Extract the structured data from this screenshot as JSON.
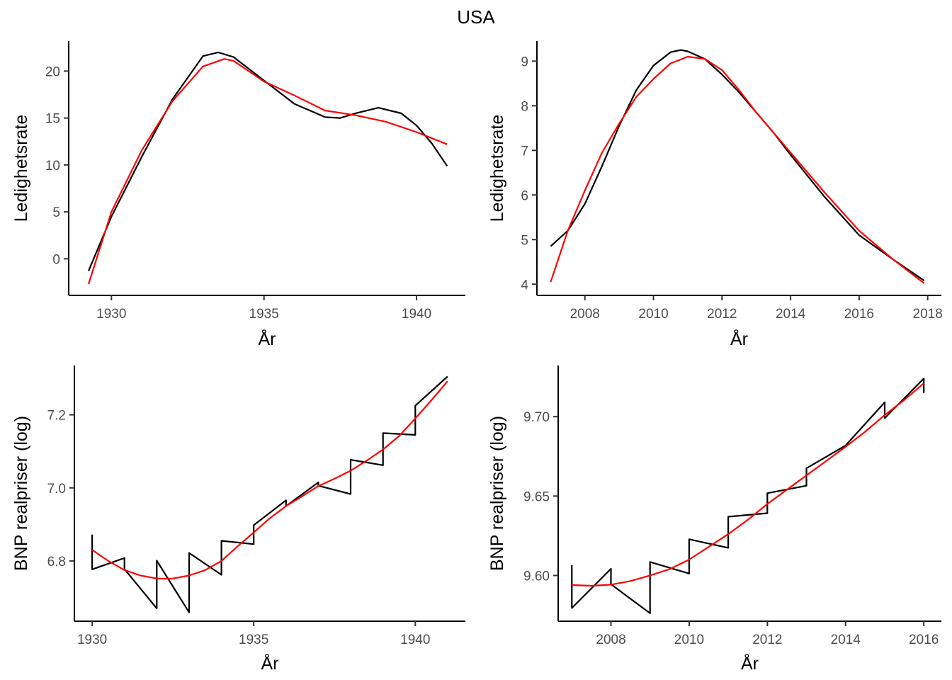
{
  "figure": {
    "title": "USA"
  },
  "colors": {
    "series_black": "#000000",
    "series_red": "#ff0000",
    "tick_text": "#4d4d4d",
    "axis": "#000000"
  },
  "chart_data": [
    {
      "type": "line",
      "xlabel": "År",
      "ylabel": "Ledighetsrate",
      "xlim": [
        1928.6,
        1941.6
      ],
      "ylim": [
        -3.9,
        23.2
      ],
      "xticks": [
        1930,
        1935,
        1940
      ],
      "yticks": [
        0,
        5,
        10,
        15,
        20
      ],
      "grid": false,
      "series": [
        {
          "color": "#000000",
          "x": [
            1929.25,
            1930,
            1931,
            1932,
            1933,
            1933.5,
            1934,
            1935,
            1936,
            1937,
            1937.5,
            1938,
            1938.75,
            1939.5,
            1940,
            1940.5,
            1941
          ],
          "y": [
            -1.3,
            4.5,
            10.9,
            17.0,
            21.6,
            22.0,
            21.5,
            19.0,
            16.5,
            15.1,
            15.0,
            15.5,
            16.1,
            15.5,
            14.2,
            12.3,
            9.9
          ]
        },
        {
          "color": "#ff0000",
          "x": [
            1929.25,
            1930,
            1931,
            1932,
            1933,
            1933.7,
            1934,
            1935,
            1936,
            1937,
            1938,
            1939,
            1940,
            1941
          ],
          "y": [
            -2.7,
            5.0,
            11.6,
            16.8,
            20.5,
            21.3,
            21.1,
            18.9,
            17.4,
            15.8,
            15.3,
            14.6,
            13.5,
            12.2
          ]
        }
      ]
    },
    {
      "type": "line",
      "xlabel": "År",
      "ylabel": "Ledighetsrate",
      "xlim": [
        2006.6,
        2018.4
      ],
      "ylim": [
        3.75,
        9.45
      ],
      "xticks": [
        2008,
        2010,
        2012,
        2014,
        2016,
        2018
      ],
      "yticks": [
        4,
        5,
        6,
        7,
        8,
        9
      ],
      "grid": false,
      "series": [
        {
          "color": "#000000",
          "x": [
            2007,
            2007.5,
            2008,
            2008.5,
            2009,
            2009.5,
            2010,
            2010.5,
            2010.8,
            2011,
            2011.5,
            2012,
            2012.5,
            2013,
            2013.5,
            2014,
            2015,
            2016,
            2017,
            2017.9
          ],
          "y": [
            4.85,
            5.2,
            5.8,
            6.65,
            7.55,
            8.35,
            8.9,
            9.2,
            9.25,
            9.22,
            9.05,
            8.7,
            8.3,
            7.85,
            7.4,
            6.9,
            5.95,
            5.1,
            4.55,
            4.08
          ]
        },
        {
          "color": "#ff0000",
          "x": [
            2007,
            2007.5,
            2008,
            2008.5,
            2009,
            2009.5,
            2010,
            2010.5,
            2011,
            2011.5,
            2012,
            2012.5,
            2013,
            2013.5,
            2014,
            2015,
            2016,
            2017,
            2017.9
          ],
          "y": [
            4.05,
            5.2,
            6.1,
            6.95,
            7.6,
            8.2,
            8.6,
            8.95,
            9.1,
            9.05,
            8.8,
            8.35,
            7.85,
            7.4,
            6.95,
            6.05,
            5.2,
            4.55,
            4.02
          ]
        }
      ]
    },
    {
      "type": "line",
      "xlabel": "År",
      "ylabel": "BNP realpriser (log)",
      "xlim": [
        1929.45,
        1941.55
      ],
      "ylim": [
        6.635,
        7.335
      ],
      "xticks": [
        1930,
        1935,
        1940
      ],
      "yticks": [
        6.8,
        7.0,
        7.2
      ],
      "grid": false,
      "series": [
        {
          "color": "#000000",
          "x": [
            1930,
            1930,
            1931,
            1931,
            1932,
            1932,
            1933,
            1933,
            1934,
            1934,
            1935,
            1935,
            1936,
            1936,
            1937,
            1937,
            1938,
            1938,
            1939,
            1939,
            1940,
            1940,
            1941
          ],
          "y": [
            6.872,
            6.777,
            6.808,
            6.778,
            6.67,
            6.801,
            6.659,
            6.822,
            6.762,
            6.855,
            6.846,
            6.898,
            6.966,
            6.95,
            7.015,
            7.006,
            6.983,
            7.077,
            7.062,
            7.15,
            7.145,
            7.225,
            7.305
          ]
        },
        {
          "color": "#ff0000",
          "x": [
            1930,
            1930.5,
            1931,
            1931.5,
            1932,
            1932.3,
            1932.5,
            1933,
            1933.5,
            1934,
            1934.5,
            1935,
            1935.5,
            1936,
            1936.5,
            1937,
            1937.5,
            1938,
            1938.5,
            1939,
            1939.5,
            1940,
            1940.5,
            1941
          ],
          "y": [
            6.83,
            6.8,
            6.775,
            6.76,
            6.752,
            6.751,
            6.752,
            6.76,
            6.775,
            6.8,
            6.84,
            6.878,
            6.917,
            6.95,
            6.977,
            7.005,
            7.025,
            7.047,
            7.075,
            7.105,
            7.142,
            7.19,
            7.24,
            7.292
          ]
        }
      ]
    },
    {
      "type": "line",
      "xlabel": "År",
      "ylabel": "BNP realpriser (log)",
      "xlim": [
        2006.65,
        2016.45
      ],
      "ylim": [
        9.5712,
        9.7322
      ],
      "xticks": [
        2008,
        2010,
        2012,
        2014,
        2016
      ],
      "yticks": [
        9.6,
        9.65,
        9.7
      ],
      "grid": false,
      "series": [
        {
          "color": "#000000",
          "x": [
            2007,
            2007,
            2008,
            2008,
            2009,
            2009,
            2010,
            2010,
            2011,
            2011,
            2012,
            2012,
            2013,
            2013,
            2014,
            2015,
            2015,
            2016,
            2016
          ],
          "y": [
            9.6065,
            9.5795,
            9.6042,
            9.5945,
            9.5762,
            9.6085,
            9.6012,
            9.6228,
            9.6174,
            9.637,
            9.6392,
            9.6518,
            9.6565,
            9.6675,
            9.6818,
            9.709,
            9.699,
            9.724,
            9.715
          ]
        },
        {
          "color": "#ff0000",
          "x": [
            2007,
            2007.5,
            2008,
            2008.5,
            2009,
            2009.5,
            2010,
            2010.5,
            2011,
            2011.5,
            2012,
            2012.5,
            2013,
            2013.5,
            2014,
            2014.5,
            2015,
            2015.5,
            2016
          ],
          "y": [
            9.594,
            9.5935,
            9.5942,
            9.5965,
            9.6,
            9.604,
            9.61,
            9.618,
            9.626,
            9.635,
            9.645,
            9.654,
            9.663,
            9.672,
            9.681,
            9.6905,
            9.701,
            9.7105,
            9.721
          ]
        }
      ]
    }
  ]
}
